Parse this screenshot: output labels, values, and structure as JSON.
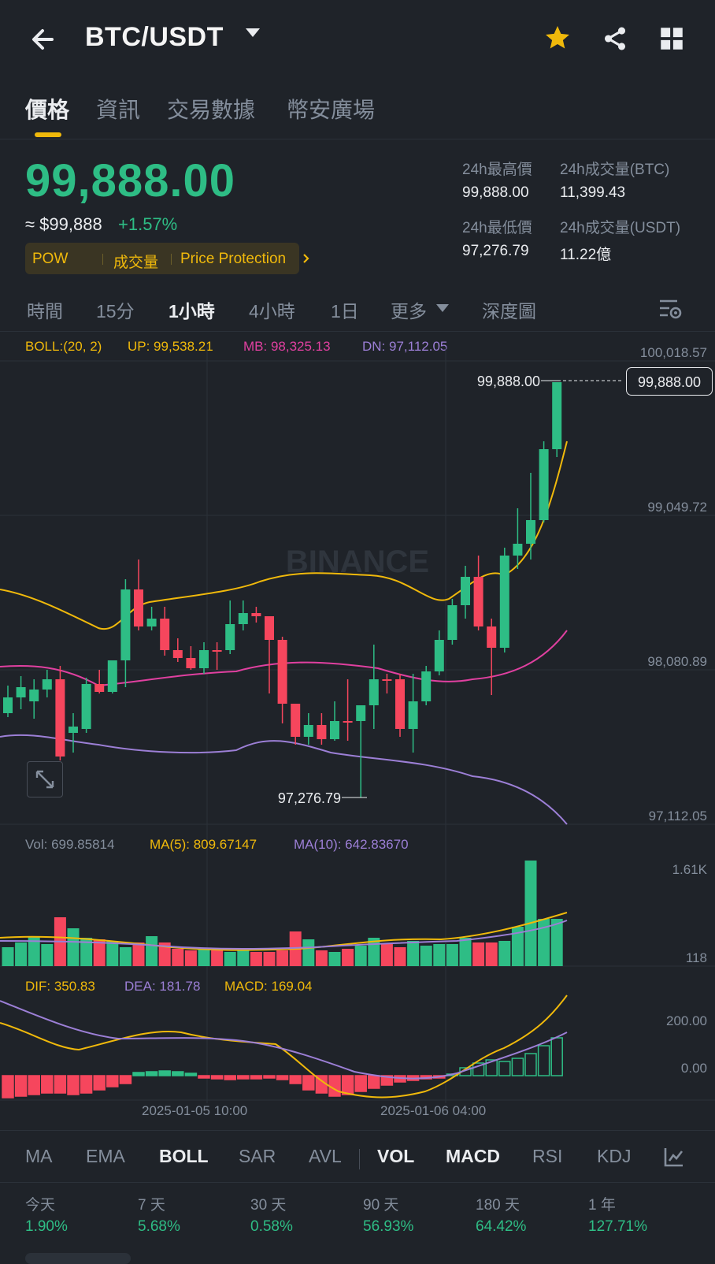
{
  "header": {
    "pair": "BTC/USDT",
    "icons": [
      "back-arrow-icon",
      "chevron-down-icon",
      "star-icon",
      "share-icon",
      "grid-icon"
    ]
  },
  "tabs": [
    "價格",
    "資訊",
    "交易數據",
    "幣安廣場"
  ],
  "price": {
    "last": "99,888.00",
    "approx": "≈ $99,888",
    "change": "+1.57%",
    "tags": [
      "POW",
      "成交量",
      "Price Protection"
    ],
    "stats": {
      "high_label": "24h最高價",
      "high_value": "99,888.00",
      "vol_btc_label": "24h成交量(BTC)",
      "vol_btc_value": "11,399.43",
      "low_label": "24h最低價",
      "low_value": "97,276.79",
      "vol_usdt_label": "24h成交量(USDT)",
      "vol_usdt_value": "11.22億"
    }
  },
  "intervals": [
    "時間",
    "15分",
    "1小時",
    "4小時",
    "1日",
    "更多",
    "深度圖"
  ],
  "chart": {
    "boll": {
      "label": "BOLL:(20, 2)",
      "up": "UP: 99,538.21",
      "mb": "MB: 98,325.13",
      "dn": "DN: 97,112.05"
    },
    "axis": [
      "100,018.57",
      "99,049.72",
      "98,080.89",
      "97,112.05"
    ],
    "last_price_label": "99,888.00",
    "last_price_tag": "99,888.00",
    "low_marker": "97,276.79",
    "watermark": "BINANCE",
    "vol": {
      "label": "Vol: 699.85814",
      "ma5": "MA(5): 809.67147",
      "ma10": "MA(10): 642.83670",
      "axis_top": "1.61K",
      "axis_bottom": "118"
    },
    "macd": {
      "dif": "DIF: 350.83",
      "dea": "DEA: 181.78",
      "macd": "MACD: 169.04",
      "axis_top": "200.00",
      "axis_mid": "0.00"
    },
    "dates": [
      "2025-01-05 10:00",
      "2025-01-06 04:00"
    ],
    "colors": {
      "up": "#2ebd85",
      "down": "#f6465d",
      "boll_up": "#f0b90b",
      "boll_mb": "#e040a0",
      "boll_dn": "#9c7fd6"
    }
  },
  "indicators": [
    "MA",
    "EMA",
    "BOLL",
    "SAR",
    "AVL",
    "VOL",
    "MACD",
    "RSI",
    "KDJ"
  ],
  "performance": [
    {
      "label": "今天",
      "value": "1.90%"
    },
    {
      "label": "7 天",
      "value": "5.68%"
    },
    {
      "label": "30 天",
      "value": "0.58%"
    },
    {
      "label": "90 天",
      "value": "56.93%"
    },
    {
      "label": "180 天",
      "value": "64.42%"
    },
    {
      "label": "1 年",
      "value": "127.71%"
    }
  ],
  "chart_data": {
    "type": "candlestick",
    "interval": "1小時",
    "y_axis": [
      97112.05,
      98080.89,
      99049.72,
      100018.57
    ],
    "last_price": 99888.0,
    "low_marked": 97276.79,
    "boll": {
      "up": 99538.21,
      "mb": 98325.13,
      "dn": 97112.05
    },
    "volume": {
      "last": 699.85814,
      "ma5": 809.67147,
      "ma10": 642.8367
    },
    "macd": {
      "dif": 350.83,
      "dea": 181.78,
      "macd": 169.04
    },
    "x_labels": [
      "2025-01-05 10:00",
      "2025-01-06 04:00"
    ]
  }
}
